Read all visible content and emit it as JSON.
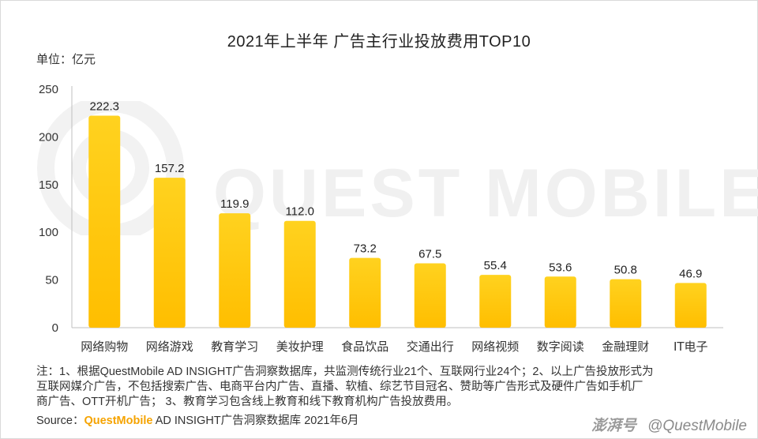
{
  "chart_data": {
    "type": "bar",
    "title": "2021年上半年 广告主行业投放费用TOP10",
    "unit_label": "单位：亿元",
    "categories": [
      "网络购物",
      "网络游戏",
      "教育学习",
      "美妆护理",
      "食品饮品",
      "交通出行",
      "网络视频",
      "数字阅读",
      "金融理财",
      "IT电子"
    ],
    "values": [
      222.3,
      157.2,
      119.9,
      112.0,
      73.2,
      67.5,
      55.4,
      53.6,
      50.8,
      46.9
    ],
    "value_labels": [
      "222.3",
      "157.2",
      "119.9",
      "112.0",
      "73.2",
      "67.5",
      "55.4",
      "53.6",
      "50.8",
      "46.9"
    ],
    "ylim": [
      0,
      250
    ],
    "yticks": [
      0,
      50,
      100,
      150,
      200,
      250
    ],
    "xlabel": "",
    "ylabel": "",
    "grid": false,
    "colors": {
      "bar_top": "#ffd21f",
      "bar_bottom": "#ffbe00",
      "axis": "#bfbfbf",
      "brand": "#f5a300"
    }
  },
  "watermark": {
    "text": "QUEST MOBILE"
  },
  "note": {
    "line1": "注：1、根据QuestMobile AD INSIGHT广告洞察数据库，共监测传统行业21个、互联网行业24个；2、以上广告投放形式为",
    "line2": "互联网媒介广告，不包括搜索广告、电商平台内广告、直播、软植、综艺节目冠名、赞助等广告形式及硬件广告如手机厂",
    "line3": "商广告、OTT开机广告； 3、教育学习包含线上教育和线下教育机构广告投放费用。"
  },
  "source": {
    "prefix": "Source：",
    "brand": "QuestMobile",
    "suffix": " AD INSIGHT广告洞察数据库 2021年6月"
  },
  "credit": {
    "platform": "澎湃号",
    "author": "@QuestMobile"
  }
}
